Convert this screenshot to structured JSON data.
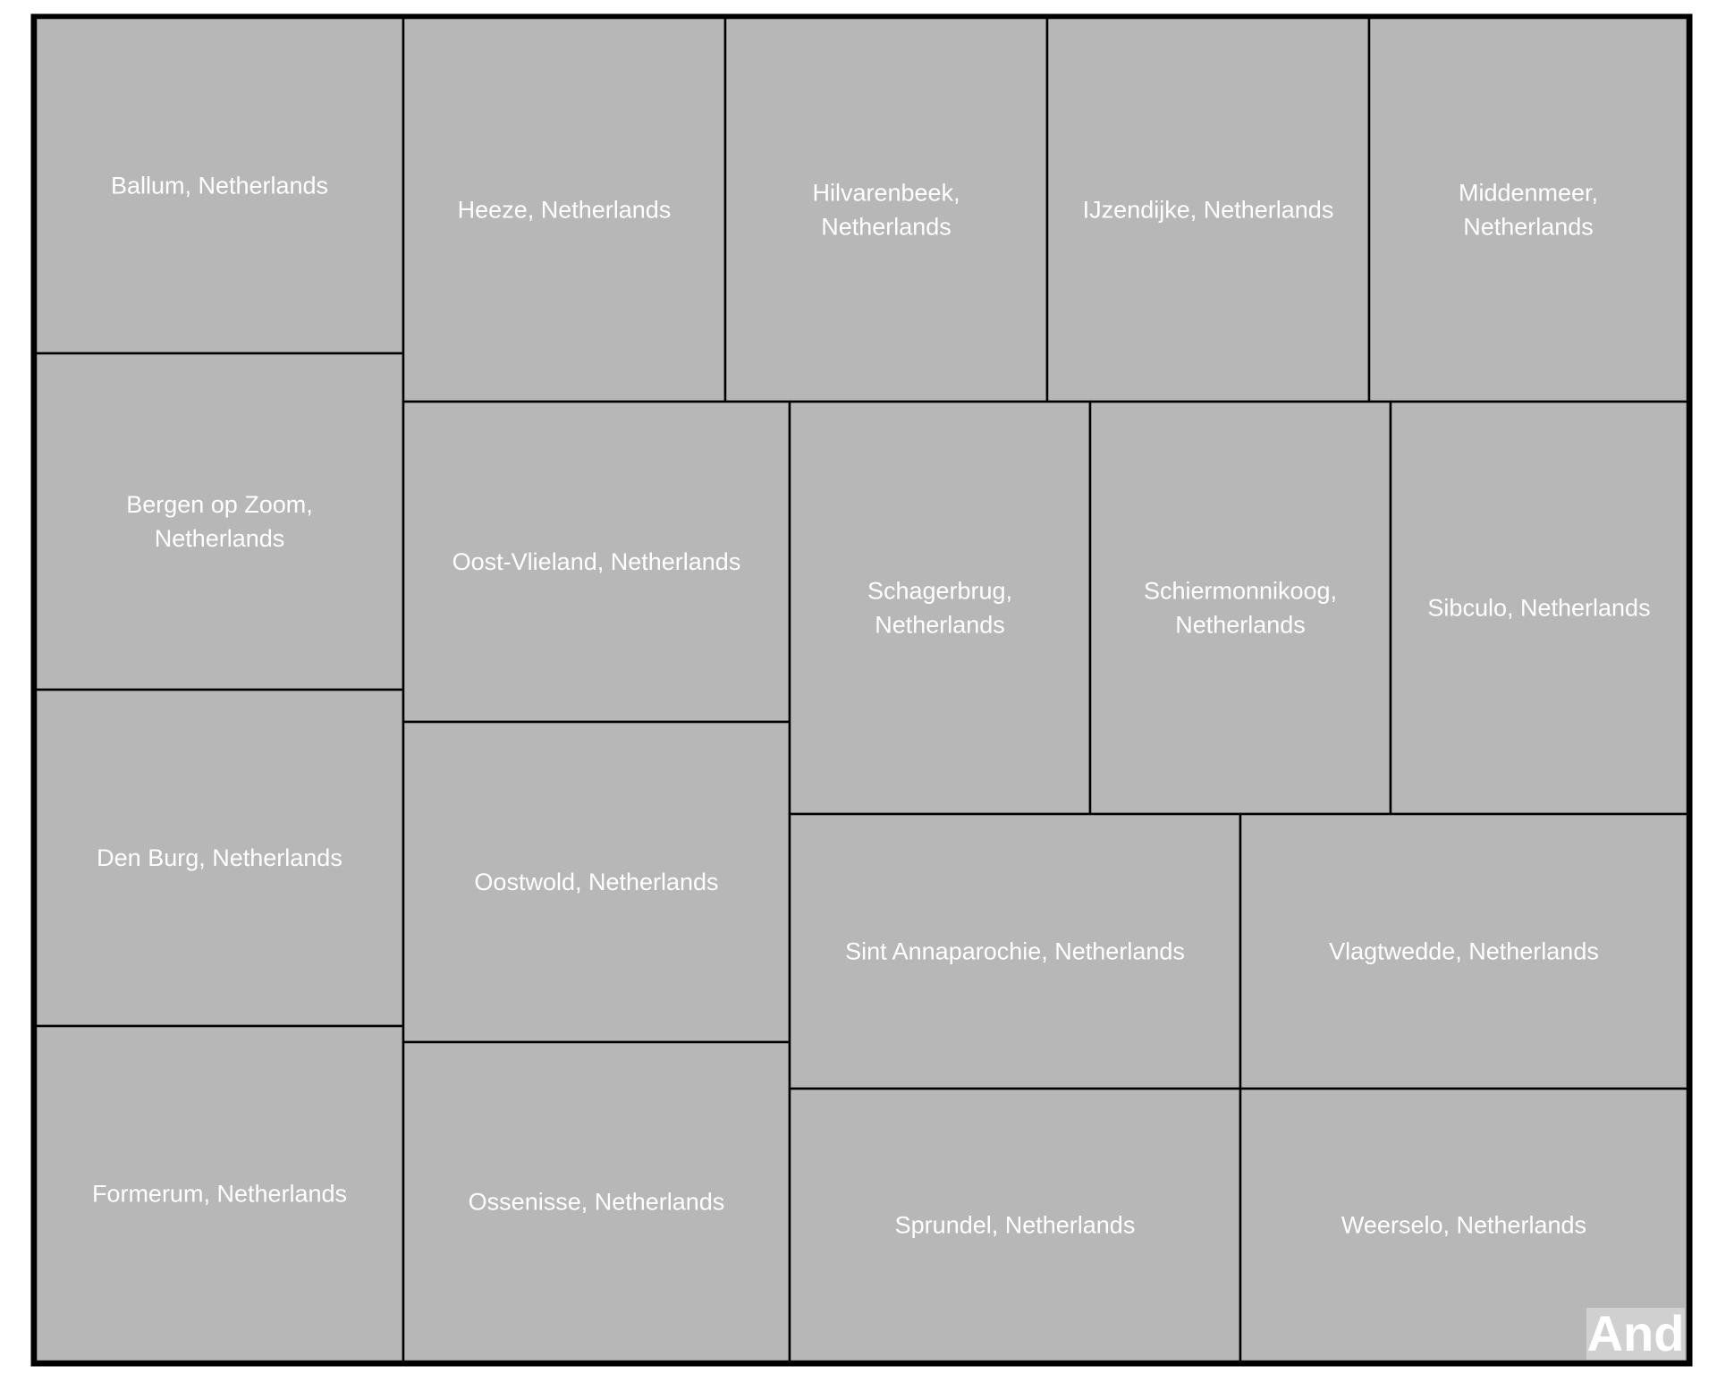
{
  "group_label": "And",
  "colors": {
    "cell_fill": "#b7b7b7",
    "cell_stroke": "#000000",
    "label_color": "#ffffff",
    "group_label_bg": "#d0d0d0",
    "background": "#ffffff"
  },
  "chart_data": {
    "type": "treemap",
    "title": "",
    "group": "And",
    "items": [
      {
        "label": "Ballum, Netherlands",
        "lines": [
          "Ballum, Netherlands"
        ]
      },
      {
        "label": "Bergen op Zoom, Netherlands",
        "lines": [
          "Bergen op Zoom,",
          "Netherlands"
        ]
      },
      {
        "label": "Den Burg, Netherlands",
        "lines": [
          "Den Burg, Netherlands"
        ]
      },
      {
        "label": "Formerum, Netherlands",
        "lines": [
          "Formerum, Netherlands"
        ]
      },
      {
        "label": "Heeze, Netherlands",
        "lines": [
          "Heeze, Netherlands"
        ]
      },
      {
        "label": "Hilvarenbeek, Netherlands",
        "lines": [
          "Hilvarenbeek,",
          "Netherlands"
        ]
      },
      {
        "label": "IJzendijke, Netherlands",
        "lines": [
          "IJzendijke, Netherlands"
        ]
      },
      {
        "label": "Middenmeer, Netherlands",
        "lines": [
          "Middenmeer,",
          "Netherlands"
        ]
      },
      {
        "label": "Oost-Vlieland, Netherlands",
        "lines": [
          "Oost-Vlieland, Netherlands"
        ]
      },
      {
        "label": "Oostwold, Netherlands",
        "lines": [
          "Oostwold, Netherlands"
        ]
      },
      {
        "label": "Ossenisse, Netherlands",
        "lines": [
          "Ossenisse, Netherlands"
        ]
      },
      {
        "label": "Schagerbrug, Netherlands",
        "lines": [
          "Schagerbrug,",
          "Netherlands"
        ]
      },
      {
        "label": "Schiermonnikoog, Netherlands",
        "lines": [
          "Schiermonnikoog,",
          "Netherlands"
        ]
      },
      {
        "label": "Sibculo, Netherlands",
        "lines": [
          "Sibculo, Netherlands"
        ]
      },
      {
        "label": "Sint Annaparochie, Netherlands",
        "lines": [
          "Sint Annaparochie, Netherlands"
        ]
      },
      {
        "label": "Vlagtwedde, Netherlands",
        "lines": [
          "Vlagtwedde, Netherlands"
        ]
      },
      {
        "label": "Sprundel, Netherlands",
        "lines": [
          "Sprundel, Netherlands"
        ]
      },
      {
        "label": "Weerselo, Netherlands",
        "lines": [
          "Weerselo, Netherlands"
        ]
      }
    ]
  }
}
